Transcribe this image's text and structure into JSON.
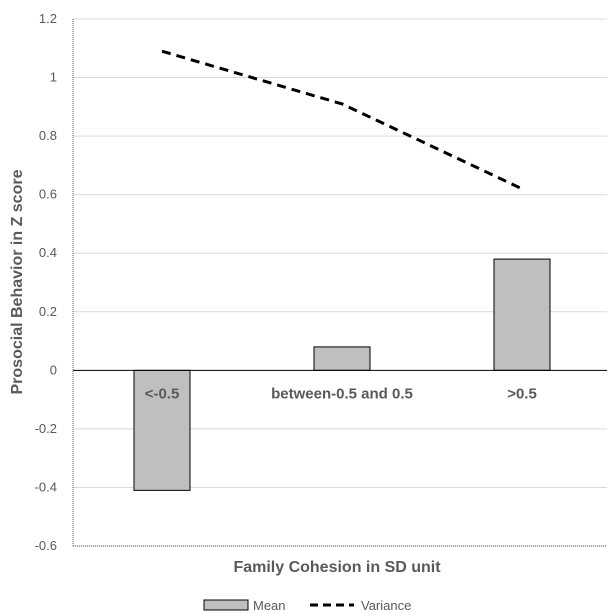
{
  "chart_data": {
    "type": "bar",
    "categories": [
      "<-0.5",
      "between-0.5 and 0.5",
      ">0.5"
    ],
    "series": [
      {
        "name": "Mean",
        "type": "bar",
        "values": [
          -0.41,
          0.08,
          0.38
        ],
        "color": "#bfbfbf",
        "stroke": "#000000"
      },
      {
        "name": "Variance",
        "type": "line",
        "style": "dashed",
        "values": [
          1.09,
          0.91,
          0.62
        ],
        "color": "#000000"
      }
    ],
    "xlabel": "Family Cohesion in SD unit",
    "ylabel": "Prosocial Behavior in Z score",
    "ylim": [
      -0.6,
      1.2
    ],
    "yticks": [
      "-0.6",
      "-0.4",
      "-0.2",
      "0",
      "0.2",
      "0.4",
      "0.6",
      "0.8",
      "1",
      "1.2"
    ],
    "grid": true,
    "legend_position": "bottom"
  }
}
